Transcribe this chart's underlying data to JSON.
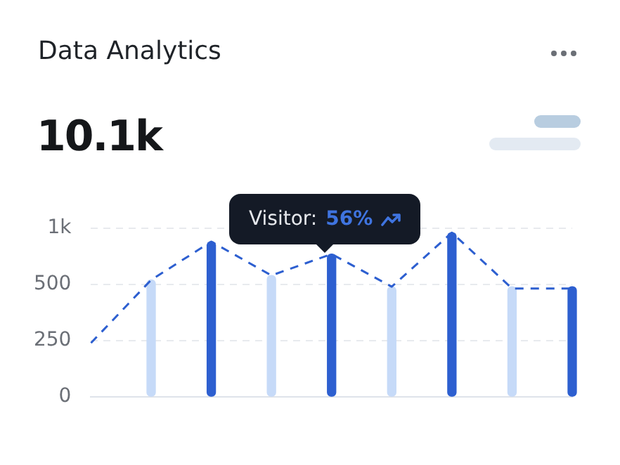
{
  "chart_data": {
    "type": "bar",
    "title": "Data Analytics",
    "subtitle": "10.1k",
    "categories": [
      null,
      null,
      null,
      null,
      null,
      null,
      null,
      null,
      null
    ],
    "series": [
      {
        "colors": [
          null,
          "#c6daf8",
          "#2d5fd0",
          "#c6daf8",
          "#2d5fd0",
          "#c6daf8",
          "#2d5fd0",
          "#c6daf8",
          "#2d5fd0"
        ],
        "values": [
          null,
          520,
          690,
          540,
          635,
          490,
          730,
          490,
          490
        ]
      },
      {
        "type": "line",
        "color": "#2d5fd0",
        "line_style": "dashed",
        "marker": "none",
        "values": [
          240,
          520,
          690,
          540,
          635,
          490,
          730,
          482,
          482
        ]
      }
    ],
    "ylim": [
      0,
      750
    ],
    "yticks": [
      0,
      250,
      500,
      {
        "value": 750,
        "label": "1k"
      }
    ],
    "grid": "y",
    "tick_labels": "y",
    "legend": false,
    "annotations": [
      "Visitor: 56%"
    ]
  }
}
